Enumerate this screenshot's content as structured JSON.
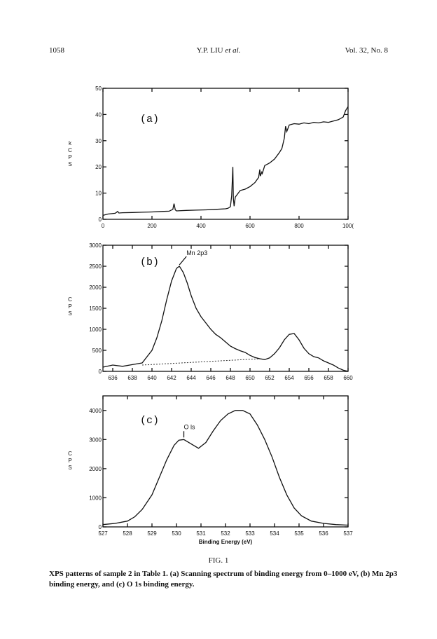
{
  "header": {
    "page_number": "1058",
    "author": "Y.P. LIU",
    "author_suffix": "et al.",
    "volume": "Vol. 32, No. 8"
  },
  "figure": {
    "label": "FIG. 1",
    "caption": "XPS patterns of sample 2 in Table 1. (a) Scanning spectrum of binding energy from 0–1000 eV, (b) Mn 2p3 binding energy, and (c) O 1s binding energy."
  },
  "chart_data": [
    {
      "type": "line",
      "panel_label": "(a)",
      "ylabel": "kCPS",
      "xlim": [
        0,
        1000
      ],
      "ylim": [
        0,
        50
      ],
      "xticks": [
        "0",
        "200",
        "400",
        "600",
        "800",
        "100("
      ],
      "yticks": [
        "0",
        "10",
        "20",
        "30",
        "40",
        "50"
      ],
      "x": [
        0,
        20,
        50,
        60,
        65,
        80,
        120,
        160,
        200,
        240,
        270,
        285,
        290,
        295,
        300,
        340,
        380,
        420,
        460,
        500,
        510,
        520,
        525,
        530,
        532,
        535,
        540,
        560,
        580,
        600,
        620,
        635,
        640,
        642,
        648,
        650,
        655,
        660,
        680,
        700,
        720,
        730,
        740,
        745,
        750,
        760,
        780,
        800,
        820,
        840,
        860,
        880,
        900,
        920,
        940,
        960,
        980,
        990,
        1000
      ],
      "y": [
        1.5,
        2.0,
        2.3,
        3.0,
        2.4,
        2.5,
        2.6,
        2.7,
        2.8,
        3.0,
        3.1,
        3.8,
        6.0,
        3.6,
        3.2,
        3.4,
        3.5,
        3.6,
        3.8,
        4.0,
        4.2,
        4.8,
        9.0,
        20.0,
        8.0,
        5.0,
        8.5,
        11.0,
        11.5,
        12.5,
        14.0,
        16.0,
        19.0,
        16.5,
        18.0,
        17.5,
        19.0,
        20.5,
        21.5,
        23.0,
        25.5,
        27.0,
        31.0,
        35.5,
        33.5,
        36.0,
        36.5,
        36.3,
        36.8,
        36.5,
        37.0,
        36.8,
        37.2,
        37.0,
        37.5,
        38.0,
        39.0,
        41.5,
        43.0
      ]
    },
    {
      "type": "line",
      "panel_label": "(b)",
      "ylabel": "CPS",
      "xlim": [
        635,
        660
      ],
      "ylim": [
        0,
        3000
      ],
      "xticks": [
        "636",
        "638",
        "640",
        "642",
        "644",
        "646",
        "648",
        "650",
        "652",
        "654",
        "656",
        "658",
        "660"
      ],
      "yticks": [
        "0",
        "500",
        "1000",
        "1500",
        "2000",
        "2500",
        "3000"
      ],
      "peak_annotations": [
        {
          "label": "Mn 2p3",
          "x": 642.8
        }
      ],
      "x": [
        635,
        636,
        637,
        638,
        639,
        640,
        640.5,
        641,
        641.5,
        642,
        642.5,
        642.8,
        643.2,
        643.6,
        644,
        644.5,
        645,
        645.5,
        646,
        646.5,
        647,
        647.5,
        648,
        648.5,
        649,
        649.5,
        650,
        650.5,
        651,
        651.5,
        652,
        652.5,
        653,
        653.5,
        654,
        654.5,
        655,
        655.5,
        656,
        656.5,
        657,
        657.5,
        658,
        658.5,
        659,
        659.5,
        660
      ],
      "y": [
        100,
        150,
        120,
        160,
        200,
        500,
        800,
        1200,
        1700,
        2150,
        2450,
        2500,
        2350,
        2100,
        1800,
        1500,
        1300,
        1150,
        1000,
        880,
        800,
        700,
        600,
        540,
        490,
        450,
        380,
        330,
        300,
        280,
        320,
        420,
        560,
        750,
        880,
        900,
        750,
        550,
        420,
        350,
        320,
        250,
        200,
        150,
        80,
        30,
        0
      ],
      "background": {
        "x": [
          639,
          651
        ],
        "y": [
          150,
          300
        ]
      }
    },
    {
      "type": "line",
      "panel_label": "(c)",
      "ylabel": "CPS",
      "xlabel": "Binding Energy (eV)",
      "xlim": [
        527,
        537
      ],
      "ylim": [
        0,
        4500
      ],
      "xticks": [
        "527",
        "528",
        "529",
        "530",
        "531",
        "532",
        "533",
        "534",
        "535",
        "536",
        "537"
      ],
      "yticks": [
        "0",
        "1000",
        "2000",
        "3000",
        "4000"
      ],
      "peak_annotations": [
        {
          "label": "O ls",
          "x": 530.3
        }
      ],
      "x": [
        527,
        527.5,
        528,
        528.3,
        528.6,
        529,
        529.3,
        529.6,
        529.9,
        530.1,
        530.3,
        530.6,
        530.9,
        531.2,
        531.5,
        531.8,
        532.1,
        532.4,
        532.7,
        533,
        533.3,
        533.6,
        533.9,
        534.2,
        534.5,
        534.8,
        535.1,
        535.5,
        536,
        536.5,
        537
      ],
      "y": [
        80,
        120,
        200,
        350,
        600,
        1100,
        1700,
        2300,
        2800,
        2980,
        3000,
        2850,
        2700,
        2900,
        3300,
        3650,
        3880,
        4000,
        4000,
        3880,
        3500,
        3000,
        2400,
        1700,
        1100,
        650,
        380,
        200,
        120,
        80,
        60
      ]
    }
  ]
}
